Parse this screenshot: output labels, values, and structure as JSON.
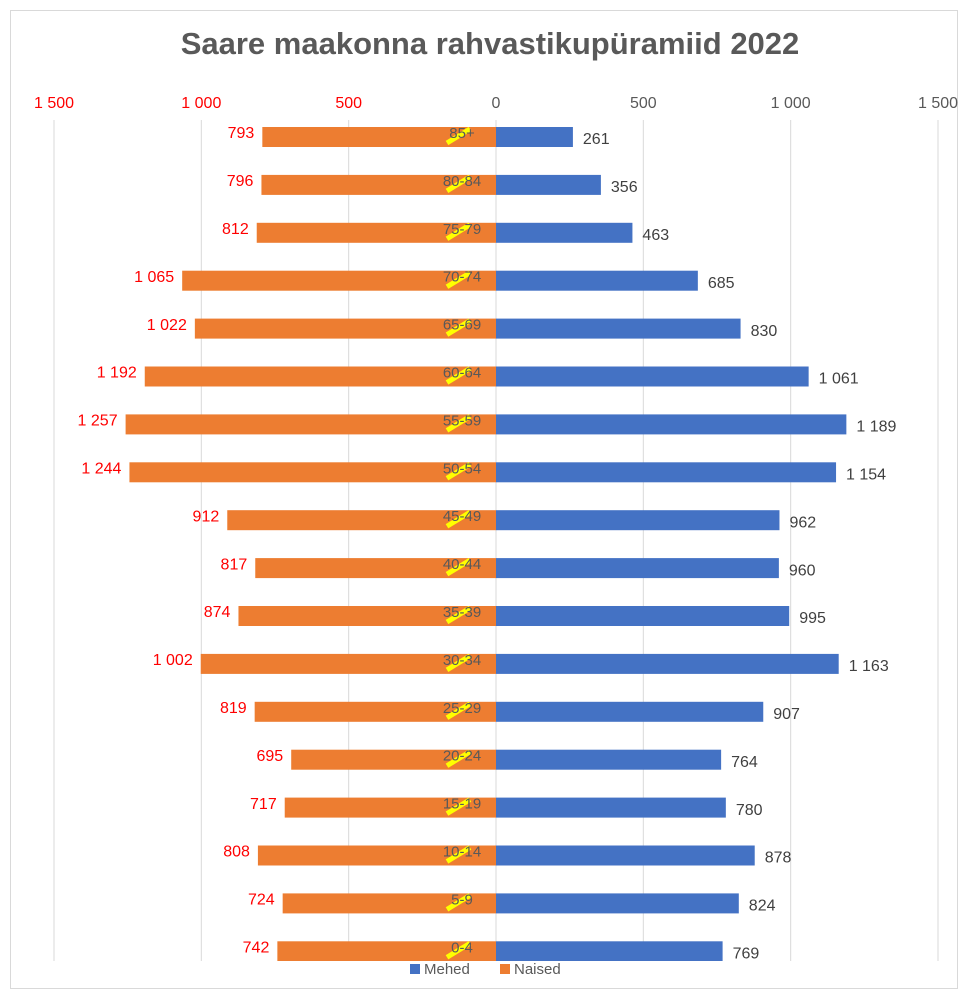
{
  "chart_data": {
    "type": "pyramid",
    "title": "Saare maakonna rahvastikupüramiid 2022",
    "categories": [
      "85+",
      "80-84",
      "75-79",
      "70-74",
      "65-69",
      "60-64",
      "55-59",
      "50-54",
      "45-49",
      "40-44",
      "35-39",
      "30-34",
      "25-29",
      "20-24",
      "15-19",
      "10-14",
      "5-9",
      "0-4"
    ],
    "series": [
      {
        "name": "Mehed",
        "color": "#4472c4",
        "values": [
          261,
          356,
          463,
          685,
          830,
          1061,
          1189,
          1154,
          962,
          960,
          995,
          1163,
          907,
          764,
          780,
          878,
          824,
          769
        ],
        "value_labels": [
          "261",
          "356",
          "463",
          "685",
          "830",
          "1 061",
          "1 189",
          "1 154",
          "962",
          "960",
          "995",
          "1 163",
          "907",
          "764",
          "780",
          "878",
          "824",
          "769"
        ]
      },
      {
        "name": "Naised",
        "color": "#ed7d31",
        "values": [
          -793,
          -796,
          -812,
          -1065,
          -1022,
          -1192,
          -1257,
          -1244,
          -912,
          -817,
          -874,
          -1002,
          -819,
          -695,
          -717,
          -808,
          -724,
          -742
        ],
        "value_labels": [
          "793",
          "796",
          "812",
          "1 065",
          "1 022",
          "1 192",
          "1 257",
          "1 244",
          "912",
          "817",
          "874",
          "1 002",
          "819",
          "695",
          "717",
          "808",
          "724",
          "742"
        ]
      }
    ],
    "xlim": [
      -1500,
      1500
    ],
    "xticks": [
      {
        "value": -1500,
        "label": "1 500"
      },
      {
        "value": -1000,
        "label": "1 000"
      },
      {
        "value": -500,
        "label": "500"
      },
      0,
      500,
      {
        "value": 1000,
        "label": "1 000"
      },
      {
        "value": 1500,
        "label": "1 500"
      }
    ],
    "grid": true,
    "legend": "bottom"
  }
}
